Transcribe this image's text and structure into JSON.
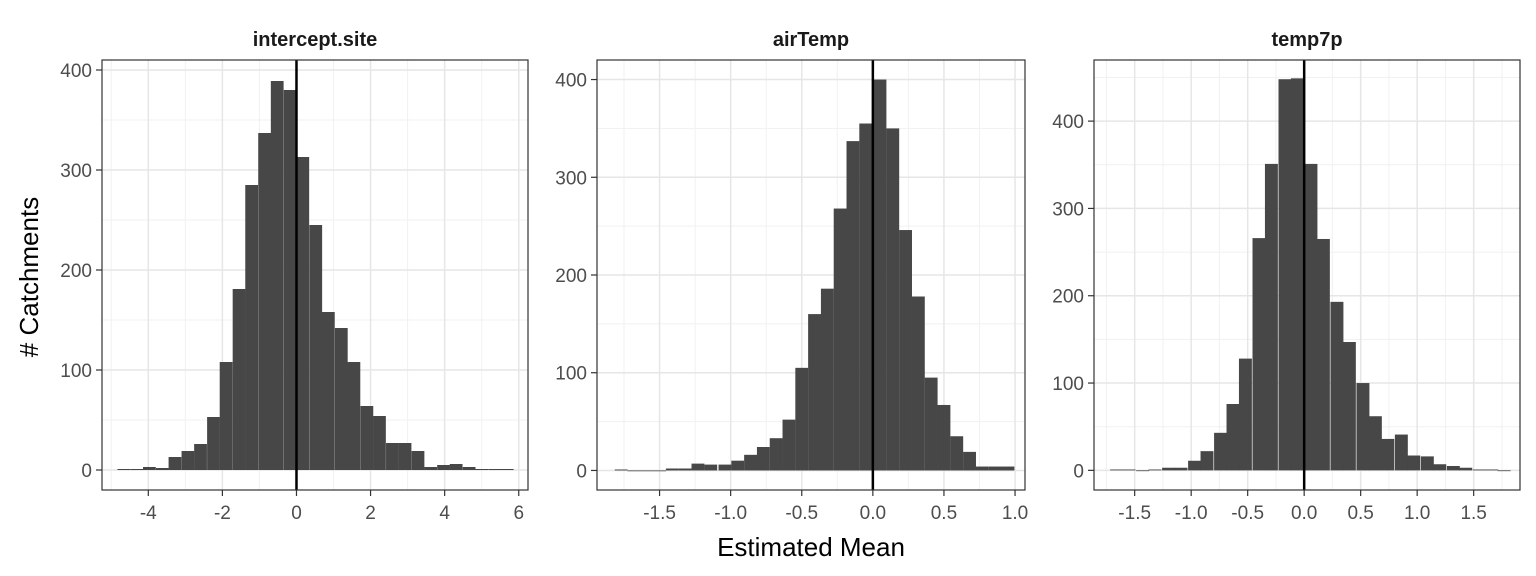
{
  "figure": {
    "ylabel": "# Catchments",
    "xlabel": "Estimated Mean"
  },
  "colors": {
    "bar": "#474747",
    "grid_major": "#e6e6e6",
    "grid_minor": "#f1f1f1",
    "frame": "#333333",
    "zero_line": "#000000"
  },
  "chart_data": [
    {
      "type": "bar",
      "title": "intercept.site",
      "xlim": [
        -5.25,
        6.25
      ],
      "ylim": [
        -20,
        410
      ],
      "xticks": [
        -4,
        -2,
        0,
        2,
        4,
        6
      ],
      "xtick_labels": [
        "-4",
        "-2",
        "0",
        "2",
        "4",
        "6"
      ],
      "yticks": [
        0,
        100,
        200,
        300,
        400
      ],
      "ytick_labels": [
        "0",
        "100",
        "200",
        "300",
        "400"
      ],
      "vline": 0,
      "bin_width": 0.345,
      "bins": [
        {
          "x": -4.66,
          "y": 1
        },
        {
          "x": -4.31,
          "y": 1
        },
        {
          "x": -3.97,
          "y": 3
        },
        {
          "x": -3.62,
          "y": 2
        },
        {
          "x": -3.28,
          "y": 13
        },
        {
          "x": -2.93,
          "y": 19
        },
        {
          "x": -2.59,
          "y": 26
        },
        {
          "x": -2.24,
          "y": 53
        },
        {
          "x": -1.9,
          "y": 108
        },
        {
          "x": -1.55,
          "y": 181
        },
        {
          "x": -1.21,
          "y": 285
        },
        {
          "x": -0.86,
          "y": 337
        },
        {
          "x": -0.52,
          "y": 389
        },
        {
          "x": -0.17,
          "y": 380
        },
        {
          "x": 0.17,
          "y": 313
        },
        {
          "x": 0.52,
          "y": 245
        },
        {
          "x": 0.86,
          "y": 158
        },
        {
          "x": 1.21,
          "y": 142
        },
        {
          "x": 1.55,
          "y": 108
        },
        {
          "x": 1.9,
          "y": 64
        },
        {
          "x": 2.24,
          "y": 54
        },
        {
          "x": 2.59,
          "y": 27
        },
        {
          "x": 2.93,
          "y": 27
        },
        {
          "x": 3.28,
          "y": 19
        },
        {
          "x": 3.62,
          "y": 3
        },
        {
          "x": 3.97,
          "y": 5
        },
        {
          "x": 4.31,
          "y": 6
        },
        {
          "x": 4.66,
          "y": 3
        },
        {
          "x": 5.0,
          "y": 1
        },
        {
          "x": 5.35,
          "y": 1
        },
        {
          "x": 5.69,
          "y": 1
        }
      ]
    },
    {
      "type": "bar",
      "title": "airTemp",
      "xlim": [
        -1.94,
        1.07
      ],
      "ylim": [
        -20,
        420
      ],
      "xticks": [
        -1.5,
        -1.0,
        -0.5,
        0.0,
        0.5,
        1.0
      ],
      "xtick_labels": [
        "-1.5",
        "-1.0",
        "-0.5",
        "0.0",
        "0.5",
        "1.0"
      ],
      "yticks": [
        0,
        100,
        200,
        300,
        400
      ],
      "ytick_labels": [
        "0",
        "100",
        "200",
        "300",
        "400"
      ],
      "vline": 0,
      "bin_width": 0.0905,
      "bins": [
        {
          "x": -1.77,
          "y": 1
        },
        {
          "x": -1.68,
          "y": 0
        },
        {
          "x": -1.59,
          "y": 0
        },
        {
          "x": -1.5,
          "y": 0
        },
        {
          "x": -1.41,
          "y": 2
        },
        {
          "x": -1.32,
          "y": 2
        },
        {
          "x": -1.23,
          "y": 7
        },
        {
          "x": -1.14,
          "y": 6
        },
        {
          "x": -1.04,
          "y": 6
        },
        {
          "x": -0.95,
          "y": 10
        },
        {
          "x": -0.86,
          "y": 16
        },
        {
          "x": -0.77,
          "y": 24
        },
        {
          "x": -0.68,
          "y": 33
        },
        {
          "x": -0.59,
          "y": 52
        },
        {
          "x": -0.5,
          "y": 105
        },
        {
          "x": -0.41,
          "y": 160
        },
        {
          "x": -0.32,
          "y": 186
        },
        {
          "x": -0.23,
          "y": 268
        },
        {
          "x": -0.14,
          "y": 337
        },
        {
          "x": -0.05,
          "y": 355
        },
        {
          "x": 0.05,
          "y": 400
        },
        {
          "x": 0.14,
          "y": 350
        },
        {
          "x": 0.23,
          "y": 246
        },
        {
          "x": 0.32,
          "y": 178
        },
        {
          "x": 0.41,
          "y": 95
        },
        {
          "x": 0.5,
          "y": 67
        },
        {
          "x": 0.59,
          "y": 35
        },
        {
          "x": 0.68,
          "y": 19
        },
        {
          "x": 0.77,
          "y": 4
        },
        {
          "x": 0.86,
          "y": 4
        },
        {
          "x": 0.95,
          "y": 4
        }
      ]
    },
    {
      "type": "bar",
      "title": "temp7p",
      "xlim": [
        -1.86,
        1.91
      ],
      "ylim": [
        -22.5,
        470
      ],
      "xticks": [
        -1.5,
        -1.0,
        -0.5,
        0.0,
        0.5,
        1.0,
        1.5
      ],
      "xtick_labels": [
        "-1.5",
        "-1.0",
        "-0.5",
        "0.0",
        "0.5",
        "1.0",
        "1.5"
      ],
      "yticks": [
        0,
        100,
        200,
        300,
        400
      ],
      "ytick_labels": [
        "0",
        "100",
        "200",
        "300",
        "400"
      ],
      "vline": 0,
      "bin_width": 0.1145,
      "bins": [
        {
          "x": -1.66,
          "y": 1
        },
        {
          "x": -1.55,
          "y": 1
        },
        {
          "x": -1.43,
          "y": 0
        },
        {
          "x": -1.32,
          "y": 1
        },
        {
          "x": -1.2,
          "y": 3
        },
        {
          "x": -1.09,
          "y": 3
        },
        {
          "x": -0.97,
          "y": 11
        },
        {
          "x": -0.86,
          "y": 22
        },
        {
          "x": -0.74,
          "y": 43
        },
        {
          "x": -0.63,
          "y": 76
        },
        {
          "x": -0.52,
          "y": 128
        },
        {
          "x": -0.4,
          "y": 266
        },
        {
          "x": -0.29,
          "y": 351
        },
        {
          "x": -0.17,
          "y": 448
        },
        {
          "x": -0.06,
          "y": 449
        },
        {
          "x": 0.06,
          "y": 351
        },
        {
          "x": 0.17,
          "y": 265
        },
        {
          "x": 0.29,
          "y": 193
        },
        {
          "x": 0.4,
          "y": 147
        },
        {
          "x": 0.52,
          "y": 100
        },
        {
          "x": 0.63,
          "y": 62
        },
        {
          "x": 0.74,
          "y": 36
        },
        {
          "x": 0.86,
          "y": 41
        },
        {
          "x": 0.97,
          "y": 17
        },
        {
          "x": 1.09,
          "y": 16
        },
        {
          "x": 1.2,
          "y": 7
        },
        {
          "x": 1.32,
          "y": 5
        },
        {
          "x": 1.43,
          "y": 3
        },
        {
          "x": 1.55,
          "y": 1
        },
        {
          "x": 1.66,
          "y": 1
        },
        {
          "x": 1.77,
          "y": 0
        }
      ]
    }
  ]
}
